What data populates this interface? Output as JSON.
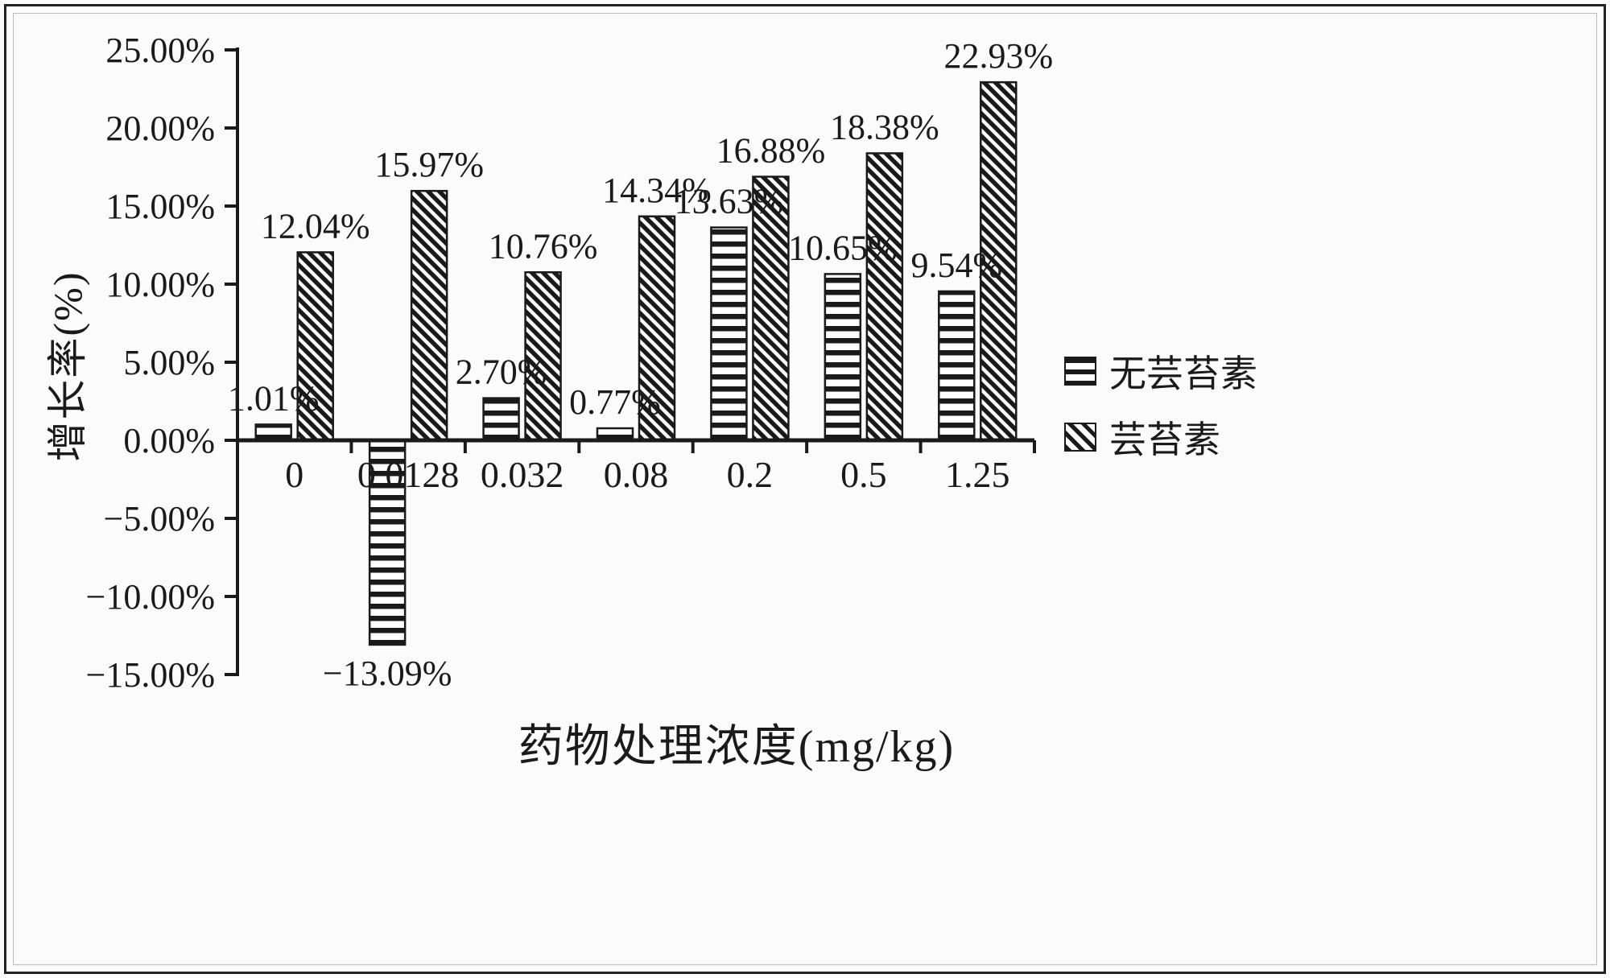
{
  "chart_data": {
    "type": "bar",
    "title": "",
    "xlabel": "药物处理浓度(mg/kg)",
    "ylabel": "增长率(%)",
    "categories": [
      "0",
      "0.0128",
      "0.032",
      "0.08",
      "0.2",
      "0.5",
      "1.25"
    ],
    "series": [
      {
        "name": "无芸苔素",
        "pattern": "horizontal-stripes",
        "values": [
          1.01,
          -13.09,
          2.7,
          0.77,
          13.63,
          10.65,
          9.54
        ],
        "labels": [
          "1.01%",
          "−13.09%",
          "2.70%",
          "0.77%",
          "13.63%",
          "10.65%",
          "9.54%"
        ]
      },
      {
        "name": "芸苔素",
        "pattern": "diagonal-stripes",
        "values": [
          12.04,
          15.97,
          10.76,
          14.34,
          16.88,
          18.38,
          22.93
        ],
        "labels": [
          "12.04%",
          "15.97%",
          "10.76%",
          "14.34%",
          "16.88%",
          "18.38%",
          "22.93%"
        ]
      }
    ],
    "ylim": [
      -15,
      25
    ],
    "ytick_values": [
      25,
      20,
      15,
      10,
      5,
      0,
      -5,
      -10,
      -15
    ],
    "ytick_labels": [
      "25.00%",
      "20.00%",
      "15.00%",
      "10.00%",
      "5.00%",
      "0.00%",
      "−5.00%",
      "−10.00%",
      "−15.00%"
    ],
    "grid": false,
    "legend_position": "right",
    "colors": {
      "ink": "#1a1a1a",
      "background": "#fbfbfb",
      "bar_fill_background": "#ffffff"
    }
  }
}
